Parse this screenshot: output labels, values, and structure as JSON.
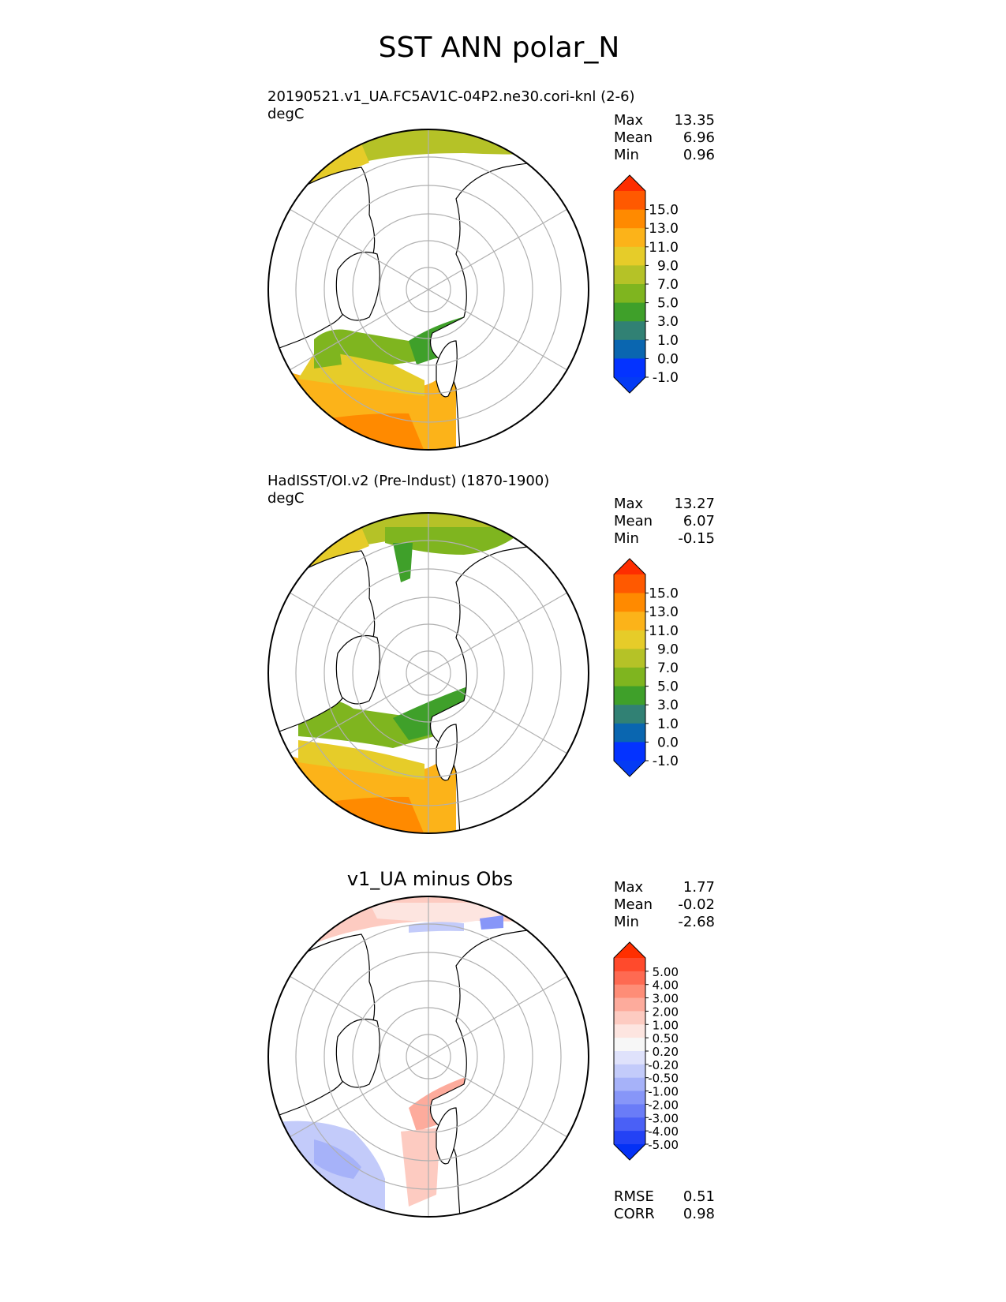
{
  "title": "SST ANN polar_N",
  "panels": [
    {
      "title": "20190521.v1_UA.FC5AV1C-04P2.ne30.cori-knl (2-6)",
      "units": "degC",
      "stats": {
        "max_label": "Max",
        "max": "13.35",
        "mean_label": "Mean",
        "mean": "6.96",
        "min_label": "Min",
        "min": "0.96"
      },
      "colorbar": {
        "ticks": [
          "15.0",
          "13.0",
          "11.0",
          "9.0",
          "7.0",
          "5.0",
          "3.0",
          "1.0",
          "0.0",
          "-1.0"
        ],
        "colors": [
          "#fe2d00",
          "#ff5900",
          "#ff8a00",
          "#fcb319",
          "#e6cc29",
          "#b5c227",
          "#7fb51f",
          "#3fa02a",
          "#318174",
          "#0a66b0",
          "#0433ff",
          "#043bf4"
        ]
      }
    },
    {
      "title": "HadISST/OI.v2 (Pre-Indust) (1870-1900)",
      "units": "degC",
      "stats": {
        "max_label": "Max",
        "max": "13.27",
        "mean_label": "Mean",
        "mean": "6.07",
        "min_label": "Min",
        "min": "-0.15"
      },
      "colorbar": {
        "ticks": [
          "15.0",
          "13.0",
          "11.0",
          "9.0",
          "7.0",
          "5.0",
          "3.0",
          "1.0",
          "0.0",
          "-1.0"
        ],
        "colors": [
          "#fe2d00",
          "#ff5900",
          "#ff8a00",
          "#fcb319",
          "#e6cc29",
          "#b5c227",
          "#7fb51f",
          "#3fa02a",
          "#318174",
          "#0a66b0",
          "#0433ff",
          "#043bf4"
        ]
      }
    },
    {
      "title": "v1_UA minus Obs",
      "units": "",
      "stats": {
        "max_label": "Max",
        "max": "1.77",
        "mean_label": "Mean",
        "mean": "-0.02",
        "min_label": "Min",
        "min": "-2.68"
      },
      "colorbar": {
        "ticks": [
          "5.00",
          "4.00",
          "3.00",
          "2.00",
          "1.00",
          "0.50",
          "0.20",
          "-0.20",
          "-0.50",
          "-1.00",
          "-2.00",
          "-3.00",
          "-4.00",
          "-5.00"
        ],
        "colors": [
          "#ff2f00",
          "#ff4a2c",
          "#fe6a52",
          "#fe8d77",
          "#fdab9c",
          "#fdcbc1",
          "#fde5e0",
          "#f7f7f7",
          "#dfe2fb",
          "#c3cbfa",
          "#a6b2f9",
          "#8796f8",
          "#6a7cf7",
          "#4a60f6",
          "#2342f5",
          "#0431f5"
        ]
      },
      "footer": {
        "rmse_label": "RMSE",
        "rmse": "0.51",
        "corr_label": "CORR",
        "corr": "0.98"
      }
    }
  ]
}
